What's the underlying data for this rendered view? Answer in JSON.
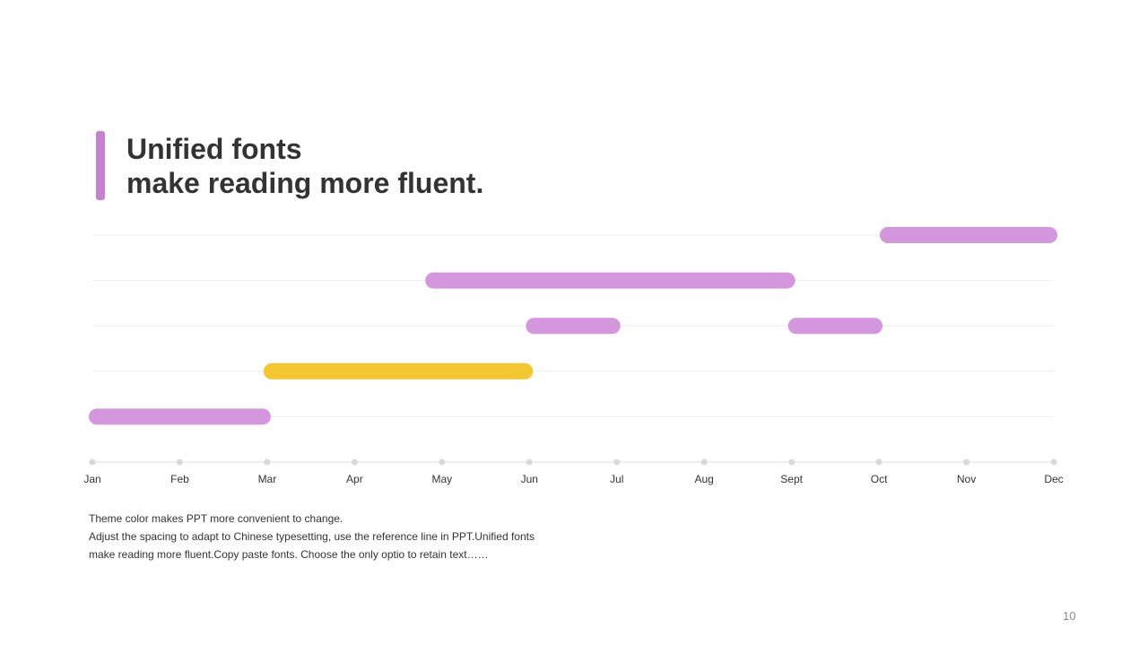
{
  "slide": {
    "title_line1": "Unified fonts",
    "title_line2": "make reading more fluent.",
    "desc_lines": [
      "Theme  color makes PPT more convenient to change.",
      "Adjust the spacing to adapt to Chinese typesetting, use the reference line in PPT.Unified fonts",
      "make reading more fluent.Copy paste fonts. Choose the only optio to retain text……"
    ],
    "page_number": "10"
  },
  "colors": {
    "accent": "#c77fcf",
    "purple_bar": "#d496dd",
    "yellow_bar": "#f4c630",
    "grid": "#eeeeee",
    "axis": "#dddddd",
    "axis_dot": "#d9d9d9",
    "text": "#333333"
  },
  "chart_data": {
    "type": "gantt",
    "x_categories": [
      "Jan",
      "Feb",
      "Mar",
      "Apr",
      "May",
      "Jun",
      "Jul",
      "Aug",
      "Sept",
      "Oct",
      "Nov",
      "Dec"
    ],
    "rows": 5,
    "bars": [
      {
        "row": 1,
        "start": 0.0,
        "end": 2.0,
        "color": "purple"
      },
      {
        "row": 2,
        "start": 2.0,
        "end": 5.0,
        "color": "yellow"
      },
      {
        "row": 3,
        "start": 5.0,
        "end": 6.0,
        "color": "purple"
      },
      {
        "row": 3,
        "start": 8.0,
        "end": 9.0,
        "color": "purple"
      },
      {
        "row": 4,
        "start": 3.85,
        "end": 8.0,
        "color": "purple"
      },
      {
        "row": 5,
        "start": 9.05,
        "end": 11.0,
        "color": "purple"
      }
    ]
  }
}
